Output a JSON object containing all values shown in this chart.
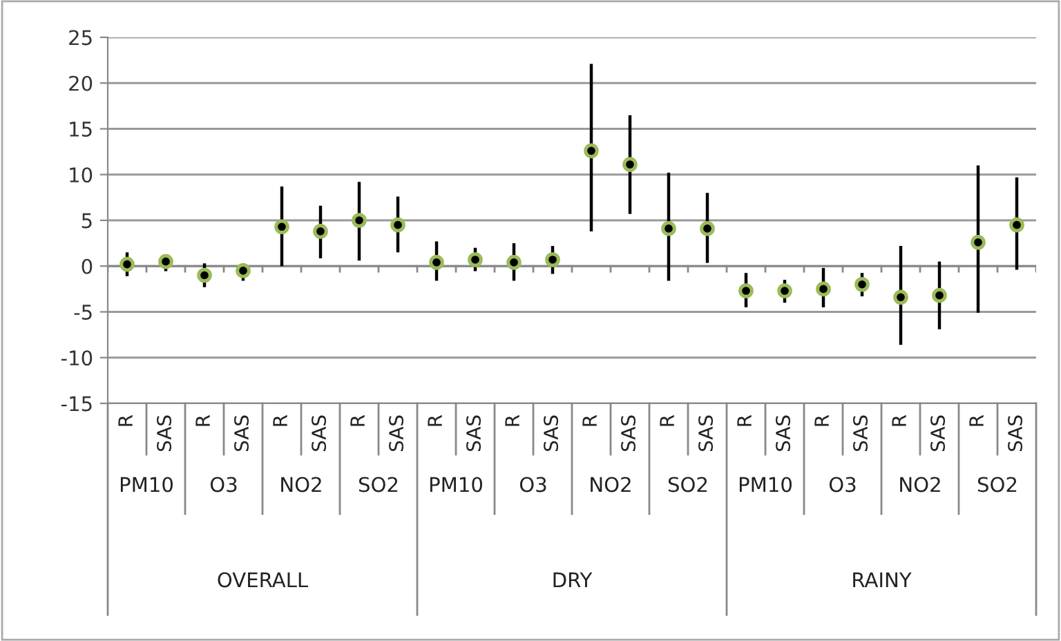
{
  "chart_data": {
    "type": "scatter",
    "categories": [
      "R",
      "SAS",
      "R",
      "SAS",
      "R",
      "SAS",
      "R",
      "SAS",
      "R",
      "SAS",
      "R",
      "SAS",
      "R",
      "SAS",
      "R",
      "SAS",
      "R",
      "SAS",
      "R",
      "SAS",
      "R",
      "SAS",
      "R",
      "SAS"
    ],
    "series": [
      {
        "color": "#9bbb59",
        "values": [
          0.2,
          0.5,
          -1.0,
          -0.5,
          4.3,
          3.8,
          5.0,
          4.5,
          0.4,
          0.7,
          0.4,
          0.7,
          12.6,
          11.1,
          4.1,
          4.1,
          -2.7,
          -2.7,
          -2.5,
          -2.0,
          -3.4,
          -3.2,
          2.6,
          4.5
        ],
        "errors": [
          [
            -1.1,
            1.5
          ],
          [
            -0.55,
            1.2
          ],
          [
            -2.3,
            0.3
          ],
          [
            -1.6,
            0.3
          ],
          [
            0,
            8.7
          ],
          [
            0.85,
            6.6
          ],
          [
            0.6,
            9.2
          ],
          [
            1.5,
            7.6
          ],
          [
            -1.6,
            2.7
          ],
          [
            -0.55,
            2.0
          ],
          [
            -1.6,
            2.5
          ],
          [
            -0.85,
            2.2
          ],
          [
            3.8,
            22.1
          ],
          [
            5.7,
            16.5
          ],
          [
            -1.6,
            10.2
          ],
          [
            0.35,
            8.0
          ],
          [
            -4.5,
            -0.75
          ],
          [
            -4.0,
            -1.5
          ],
          [
            -4.5,
            -0.2
          ],
          [
            -3.3,
            -0.75
          ],
          [
            -8.6,
            2.2
          ],
          [
            -6.9,
            0.5
          ],
          [
            -5.1,
            11.0
          ],
          [
            -0.4,
            9.7
          ]
        ]
      }
    ],
    "annotations": [
      "PM10",
      "O3",
      "NO2",
      "SO2",
      "PM10",
      "O3",
      "NO2",
      "SO2",
      "PM10",
      "O3",
      "NO2",
      "SO2",
      "OVERALL",
      "DRY",
      "RAINY"
    ],
    "ylim": [
      -15,
      25
    ],
    "yticks": [
      -15,
      -10,
      -5,
      0,
      5,
      10,
      15,
      20,
      25
    ],
    "grid": "y",
    "marker": "circle"
  }
}
